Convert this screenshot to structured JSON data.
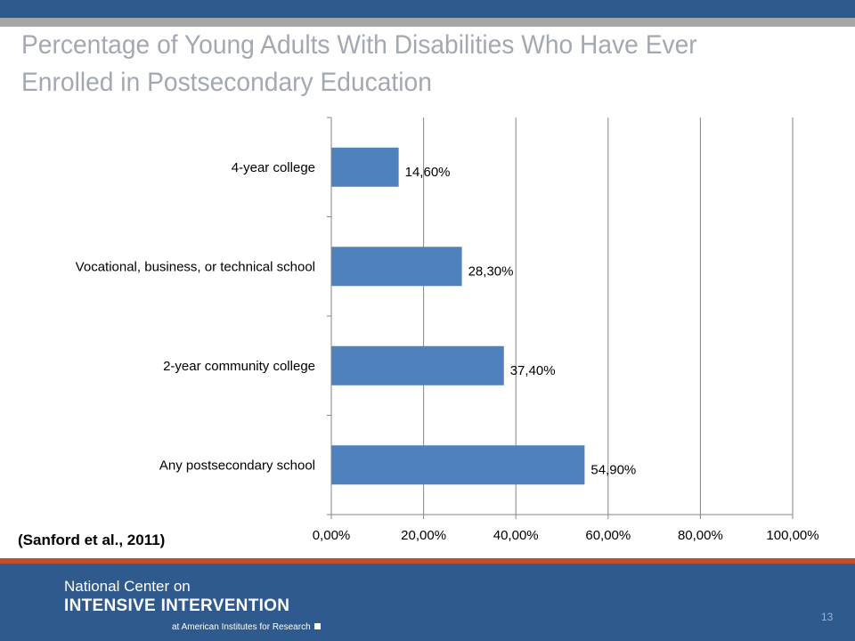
{
  "slide": {
    "title": "Percentage of Young Adults With Disabilities Who Have Ever Enrolled in Postsecondary Education",
    "citation": "(Sanford et al., 2011)",
    "page_number": "13"
  },
  "footer": {
    "org_line1": "National Center on",
    "org_line2": "INTENSIVE INTERVENTION",
    "org_line3": "at American Institutes for Research"
  },
  "colors": {
    "top_bar": "#2f5a8e",
    "top_stripe": "#a6a6a6",
    "accent_orange": "#c0502a",
    "footer_bg": "#2f5a8e",
    "bar_fill": "#4f81bd",
    "title_text": "#a3a9b3"
  },
  "chart_data": {
    "type": "bar",
    "orientation": "horizontal",
    "categories": [
      "4-year college",
      "Vocational, business, or technical school",
      "2-year community college",
      "Any postsecondary school"
    ],
    "values": [
      14.6,
      28.3,
      37.4,
      54.9
    ],
    "value_labels": [
      "14,60%",
      "28,30%",
      "37,40%",
      "54,90%"
    ],
    "xlim": [
      0,
      100
    ],
    "x_ticks": [
      0,
      20,
      40,
      60,
      80,
      100
    ],
    "x_tick_labels": [
      "0,00%",
      "20,00%",
      "40,00%",
      "60,00%",
      "80,00%",
      "100,00%"
    ],
    "grid": true,
    "legend": "none",
    "title": "",
    "xlabel": "",
    "ylabel": ""
  }
}
